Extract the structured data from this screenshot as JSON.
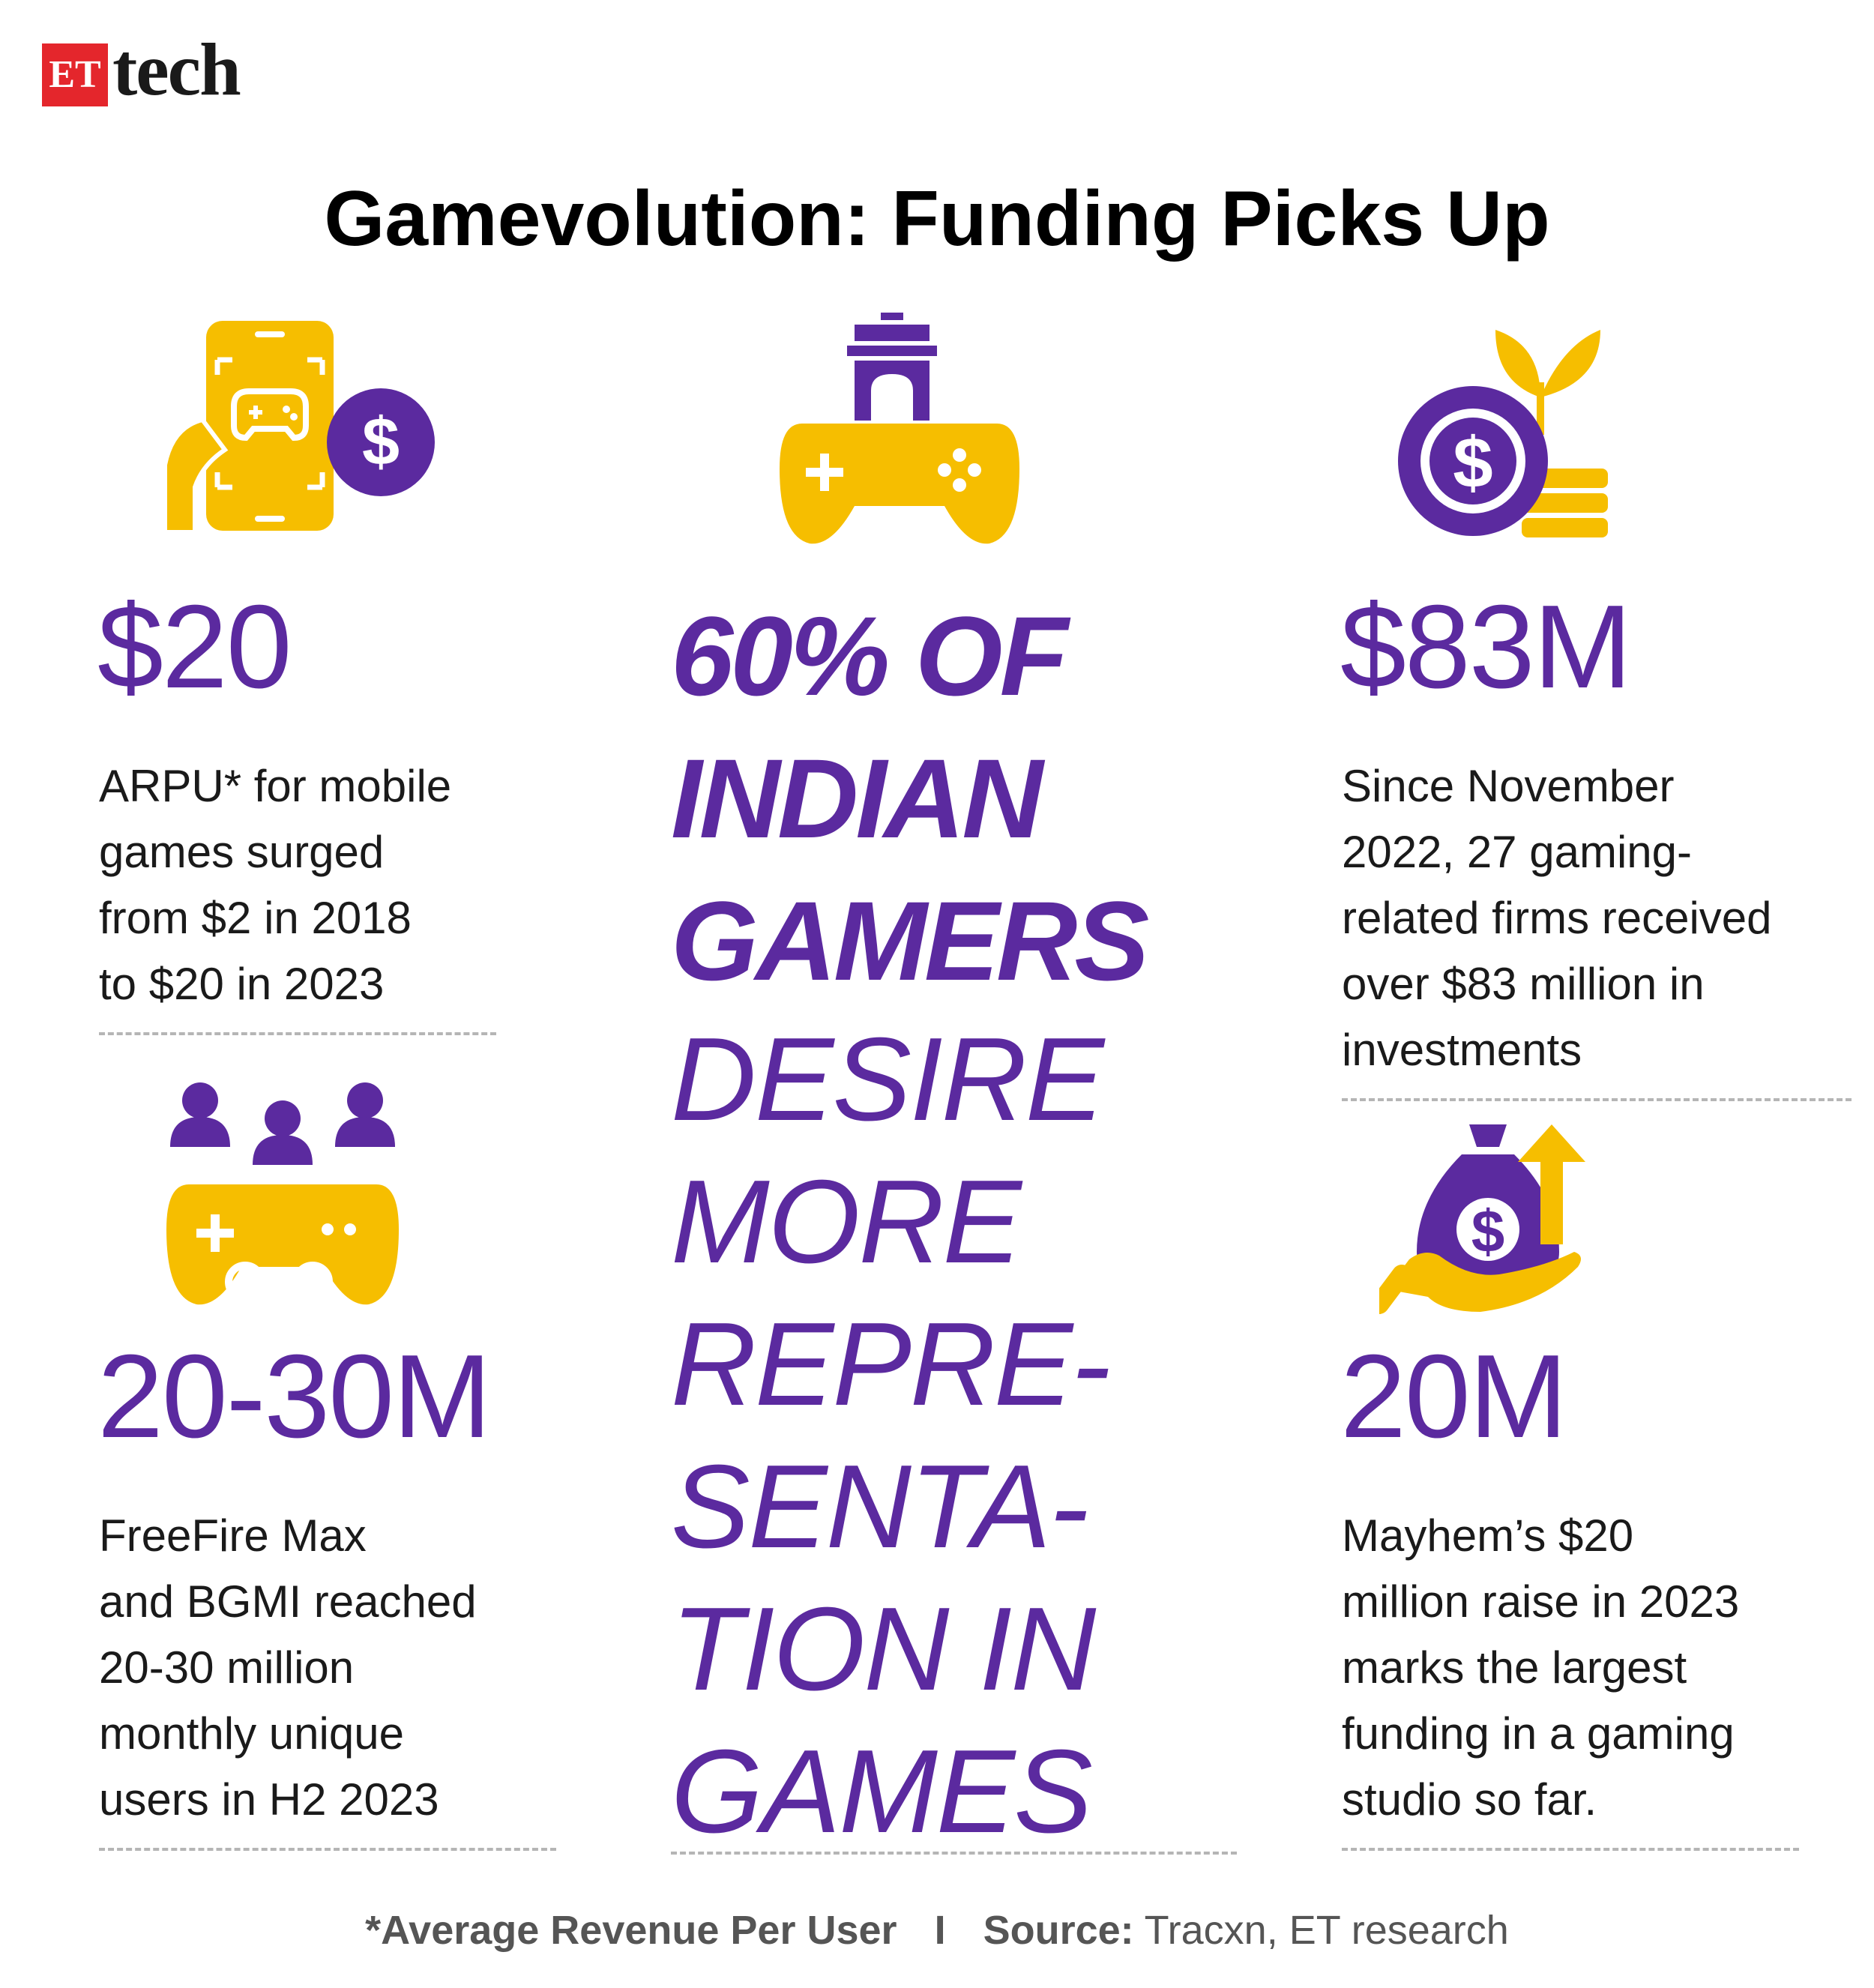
{
  "brand": {
    "logo_et": "ET",
    "logo_tech": "tech"
  },
  "title": "Gamevolution: Funding Picks Up",
  "colors": {
    "purple": "#5b2a9f",
    "yellow": "#f6be00",
    "logo_red": "#e4262c"
  },
  "stats": [
    {
      "icon": "mobile-game-coin-icon",
      "value": "$20",
      "lines": [
        "ARPU* for mobile",
        "games surged",
        "from $2 in 2018",
        "to $20 in 2023"
      ]
    },
    {
      "icon": "gamers-controller-icon",
      "value": "20-30M",
      "lines": [
        "FreeFire Max",
        "and BGMI reached",
        "20-30 million",
        "monthly unique",
        "users in H2 2023"
      ]
    },
    {
      "icon": "coin-sprout-icon",
      "value": "$83M",
      "lines": [
        "Since November",
        "2022, 27 gaming-",
        "related firms received",
        "over $83 million in",
        "investments"
      ]
    },
    {
      "icon": "money-bag-hand-icon",
      "value": "20M",
      "lines": [
        "Mayhem’s $20",
        "million raise in 2023",
        "marks the largest",
        "funding in a gaming",
        "studio so far."
      ]
    }
  ],
  "center": {
    "icon": "india-gate-controller-icon",
    "bold_lines": [
      "60% OF",
      "INDIAN",
      "GAMERS"
    ],
    "thin_lines": [
      "DESIRE",
      "MORE",
      "REPRE-",
      "SENTA-",
      "TION IN",
      "GAMES"
    ]
  },
  "footer": {
    "note": "*Average Revenue Per User",
    "separator": "I",
    "source_label": "Source:",
    "source_text": " Tracxn, ET research"
  }
}
